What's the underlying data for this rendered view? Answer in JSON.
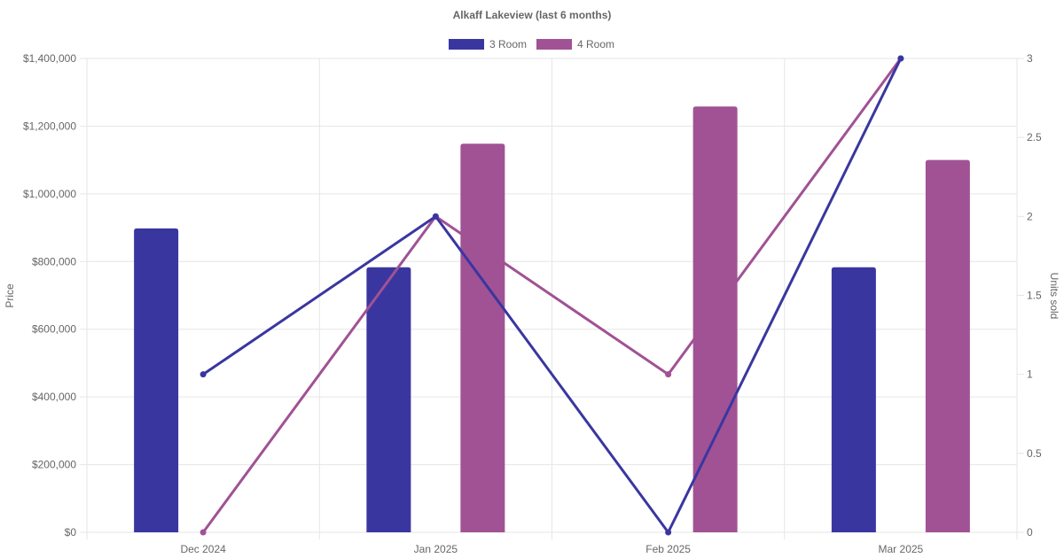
{
  "chart_data": {
    "type": "bar",
    "title": "Alkaff Lakeview (last 6 months)",
    "categories": [
      "Dec 2024",
      "Jan 2025",
      "Feb 2025",
      "Mar 2025"
    ],
    "ylabel": "Price",
    "y2label": "Units sold",
    "ylim": [
      0,
      1400000
    ],
    "y2lim": [
      0,
      3
    ],
    "yticks": [
      "$0",
      "$200,000",
      "$400,000",
      "$600,000",
      "$800,000",
      "$1,000,000",
      "$1,200,000",
      "$1,400,000"
    ],
    "y2ticks": [
      "0",
      "0.5",
      "1",
      "1.5",
      "2",
      "2.5",
      "3"
    ],
    "legend_position": "top",
    "grid": true,
    "series": [
      {
        "name": "3 Room",
        "color": "#3a36a0",
        "price": [
          898000,
          783000,
          null,
          783000
        ],
        "units": [
          1,
          2,
          0,
          3
        ]
      },
      {
        "name": "4 Room",
        "color": "#a05294",
        "price": [
          null,
          1148000,
          1258000,
          1100000
        ],
        "units": [
          0,
          2,
          1,
          3
        ]
      }
    ]
  }
}
